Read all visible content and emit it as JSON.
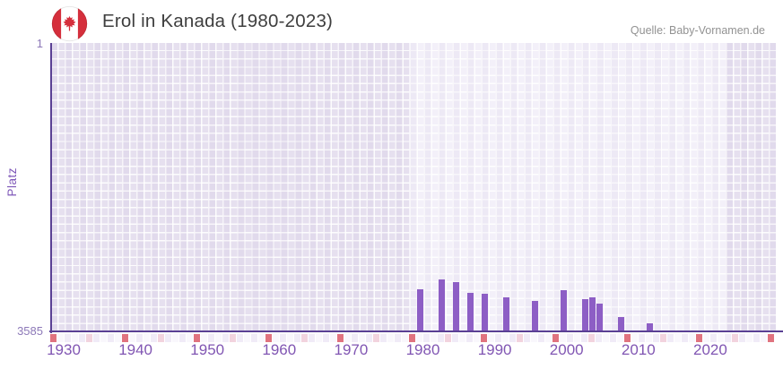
{
  "header": {
    "title": "Erol in Kanada (1980-2023)",
    "source": "Quelle: Baby-Vornamen.de"
  },
  "chart_data": {
    "type": "bar",
    "title": "Erol in Kanada (1980-2023)",
    "ylabel": "Platz",
    "xlabel": "",
    "legend": false,
    "grid": true,
    "y_axis": {
      "best_rank_label": "1",
      "worst_rank_label": "3585",
      "min": 1,
      "max": 3585,
      "inverted": true
    },
    "x_axis": {
      "start_year": 1928,
      "end_year": 2028,
      "tick_labels": [
        "1930",
        "1940",
        "1950",
        "1960",
        "1970",
        "1980",
        "1990",
        "2000",
        "2010",
        "2020"
      ]
    },
    "highlight_period": {
      "from": 1980,
      "to": 2023
    },
    "series": [
      {
        "name": "Platz",
        "points": [
          {
            "year": 1980,
            "rank": 3060
          },
          {
            "year": 1983,
            "rank": 2940
          },
          {
            "year": 1985,
            "rank": 2970
          },
          {
            "year": 1987,
            "rank": 3110
          },
          {
            "year": 1989,
            "rank": 3115
          },
          {
            "year": 1992,
            "rank": 3160
          },
          {
            "year": 1996,
            "rank": 3205
          },
          {
            "year": 2000,
            "rank": 3070
          },
          {
            "year": 2003,
            "rank": 3180
          },
          {
            "year": 2004,
            "rank": 3160
          },
          {
            "year": 2005,
            "rank": 3240
          },
          {
            "year": 2008,
            "rank": 3405
          },
          {
            "year": 2012,
            "rank": 3485
          }
        ]
      }
    ],
    "colors": {
      "bar": "#8d5ec5",
      "axis": "#5a4094",
      "band_data": "#f3f0f9",
      "band_no_data": "#e6e0ef",
      "decade_tick": "#e0737f",
      "half_decade_tick": "#f2d3de",
      "x_label": "#8156b3",
      "y_label": "#8d79b8"
    }
  }
}
